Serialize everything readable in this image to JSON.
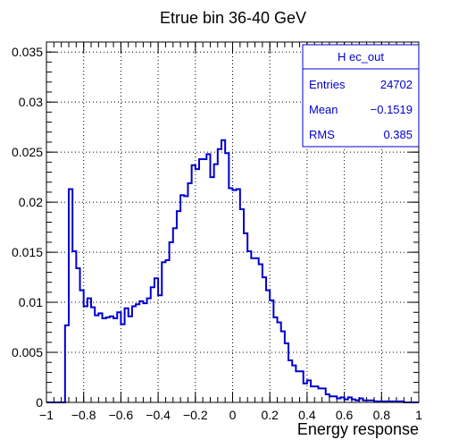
{
  "chart_data": {
    "type": "histogram",
    "title": "Etrue bin 36-40 GeV",
    "xlabel": "Energy response",
    "ylabel": "",
    "xlim": [
      -1,
      1
    ],
    "ylim": [
      0,
      0.036
    ],
    "grid": true,
    "x_ticks": [
      -1,
      -0.8,
      -0.6,
      -0.4,
      -0.2,
      0,
      0.2,
      0.4,
      0.6,
      0.8,
      1
    ],
    "x_tick_labels": [
      "−1",
      "−0.8",
      "−0.6",
      "−0.4",
      "−0.2",
      "0",
      "0.2",
      "0.4",
      "0.6",
      "0.8",
      "1"
    ],
    "y_ticks": [
      0,
      0.005,
      0.01,
      0.015,
      0.02,
      0.025,
      0.03,
      0.035
    ],
    "y_tick_labels": [
      "0",
      "0.005",
      "0.01",
      "0.015",
      "0.02",
      "0.025",
      "0.03",
      "0.035"
    ],
    "bin_width": 0.02,
    "bin_edges_start": -1,
    "series": [
      {
        "color": "#0000cc",
        "values": [
          0,
          0,
          0,
          0,
          0,
          0.0077,
          0.0213,
          0.0151,
          0.0134,
          0.0112,
          0.0096,
          0.0104,
          0.0095,
          0.0087,
          0.0089,
          0.0084,
          0.0085,
          0.0086,
          0.0084,
          0.009,
          0.0078,
          0.0094,
          0.0086,
          0.0096,
          0.0098,
          0.0101,
          0.0099,
          0.0104,
          0.0115,
          0.0124,
          0.0107,
          0.014,
          0.0142,
          0.016,
          0.0174,
          0.0191,
          0.0207,
          0.0206,
          0.0219,
          0.0237,
          0.0233,
          0.0243,
          0.0243,
          0.0248,
          0.0225,
          0.0238,
          0.0253,
          0.0262,
          0.0249,
          0.0214,
          0.0212,
          0.0213,
          0.0193,
          0.0169,
          0.0151,
          0.0144,
          0.0144,
          0.0138,
          0.0125,
          0.0112,
          0.0102,
          0.0085,
          0.008,
          0.0071,
          0.0059,
          0.0042,
          0.0037,
          0.0031,
          0.0031,
          0.0019,
          0.0022,
          0.0016,
          0.0016,
          0.0014,
          0.0014,
          0.0008,
          0.0006,
          0.0006,
          0.0004,
          0.0005,
          0.0003,
          0.0005,
          0.0003,
          0.0002,
          0.0004,
          0.0002,
          0.0002,
          0.0002,
          0.0001,
          0.0001,
          0.0001,
          0.0001,
          0.0001,
          0.0001,
          0.0001,
          0.0001,
          0.0,
          0.0,
          0.0,
          0.0
        ]
      }
    ],
    "stats_box": {
      "name": "H ec_out",
      "position": "top-right",
      "rows": [
        {
          "label": "Entries",
          "value": "24702"
        },
        {
          "label": "Mean",
          "value": "−0.1519"
        },
        {
          "label": "RMS",
          "value": "0.385"
        }
      ]
    }
  },
  "colors": {
    "line": "#0000cc",
    "axis": "#000000",
    "grid": "#000000"
  }
}
